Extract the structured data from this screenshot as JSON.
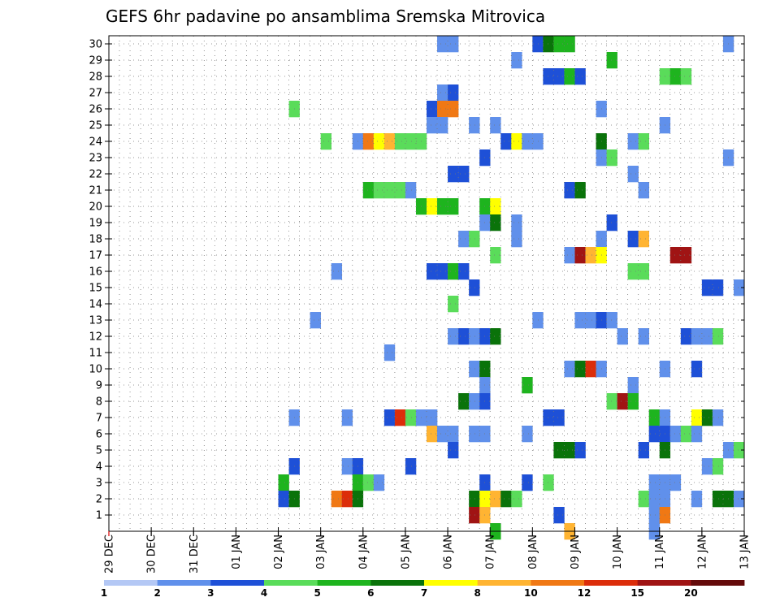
{
  "chart_data": {
    "type": "heatmap",
    "title": "GEFS 6hr padavine po ansamblima Sremska Mitrovica",
    "xlabel": "",
    "ylabel": "",
    "y_ticks": [
      "1",
      "2",
      "3",
      "4",
      "5",
      "6",
      "7",
      "8",
      "9",
      "10",
      "11",
      "12",
      "13",
      "14",
      "15",
      "16",
      "17",
      "18",
      "19",
      "20",
      "21",
      "22",
      "23",
      "24",
      "25",
      "26",
      "27",
      "28",
      "29",
      "30"
    ],
    "x_ticks": [
      "29 DEC",
      "30 DEC",
      "31 DEC",
      "01 JAN",
      "02 JAN",
      "03 JAN",
      "04 JAN",
      "05 JAN",
      "06 JAN",
      "07 JAN",
      "08 JAN",
      "09 JAN",
      "10 JAN",
      "11 JAN",
      "12 JAN",
      "13 JAN"
    ],
    "x_range_days": [
      0,
      15
    ],
    "y_range": [
      0,
      30
    ],
    "steps_per_day": 4,
    "colorbar": {
      "labels": [
        "1",
        "2",
        "3",
        "4",
        "5",
        "6",
        "7",
        "8",
        "10",
        "12",
        "15",
        "20"
      ],
      "colors": [
        "#b4c8f5",
        "#6090eb",
        "#1e50d7",
        "#5adc5a",
        "#1eb41e",
        "#0a730a",
        "#ffff00",
        "#ffb432",
        "#f07814",
        "#dc2d0a",
        "#a01414",
        "#640a0a"
      ]
    },
    "cells": [
      [
        30,
        31,
        1
      ],
      [
        30,
        32,
        1
      ],
      [
        30,
        40,
        2
      ],
      [
        30,
        41,
        5
      ],
      [
        30,
        42,
        4
      ],
      [
        30,
        43,
        4
      ],
      [
        30,
        58,
        1
      ],
      [
        29,
        38,
        1
      ],
      [
        29,
        47,
        4
      ],
      [
        28,
        41,
        2
      ],
      [
        28,
        42,
        2
      ],
      [
        28,
        43,
        4
      ],
      [
        28,
        44,
        2
      ],
      [
        28,
        52,
        3
      ],
      [
        28,
        53,
        4
      ],
      [
        28,
        54,
        3
      ],
      [
        27,
        31,
        1
      ],
      [
        27,
        32,
        2
      ],
      [
        26,
        17,
        3
      ],
      [
        26,
        30,
        2
      ],
      [
        26,
        31,
        8
      ],
      [
        26,
        32,
        8
      ],
      [
        26,
        46,
        1
      ],
      [
        25,
        30,
        1
      ],
      [
        25,
        31,
        1
      ],
      [
        25,
        34,
        1
      ],
      [
        25,
        36,
        1
      ],
      [
        25,
        52,
        1
      ],
      [
        24,
        20,
        3
      ],
      [
        24,
        23,
        1
      ],
      [
        24,
        24,
        8
      ],
      [
        24,
        25,
        6
      ],
      [
        24,
        26,
        7
      ],
      [
        24,
        27,
        3
      ],
      [
        24,
        28,
        3
      ],
      [
        24,
        29,
        3
      ],
      [
        24,
        37,
        2
      ],
      [
        24,
        38,
        6
      ],
      [
        24,
        39,
        1
      ],
      [
        24,
        40,
        1
      ],
      [
        24,
        46,
        5
      ],
      [
        24,
        49,
        1
      ],
      [
        24,
        50,
        3
      ],
      [
        23,
        35,
        2
      ],
      [
        23,
        46,
        1
      ],
      [
        23,
        47,
        3
      ],
      [
        23,
        58,
        1
      ],
      [
        22,
        32,
        2
      ],
      [
        22,
        33,
        2
      ],
      [
        22,
        49,
        1
      ],
      [
        21,
        24,
        4
      ],
      [
        21,
        25,
        3
      ],
      [
        21,
        26,
        3
      ],
      [
        21,
        27,
        3
      ],
      [
        21,
        28,
        1
      ],
      [
        21,
        43,
        2
      ],
      [
        21,
        44,
        5
      ],
      [
        21,
        50,
        1
      ],
      [
        20,
        29,
        4
      ],
      [
        20,
        30,
        6
      ],
      [
        20,
        31,
        4
      ],
      [
        20,
        32,
        4
      ],
      [
        20,
        35,
        4
      ],
      [
        20,
        36,
        6
      ],
      [
        19,
        35,
        1
      ],
      [
        19,
        36,
        5
      ],
      [
        19,
        38,
        1
      ],
      [
        19,
        47,
        2
      ],
      [
        18,
        33,
        1
      ],
      [
        18,
        34,
        3
      ],
      [
        18,
        38,
        1
      ],
      [
        18,
        46,
        1
      ],
      [
        18,
        49,
        2
      ],
      [
        18,
        50,
        7
      ],
      [
        17,
        36,
        3
      ],
      [
        17,
        43,
        1
      ],
      [
        17,
        44,
        10
      ],
      [
        17,
        45,
        7
      ],
      [
        17,
        46,
        6
      ],
      [
        17,
        53,
        10
      ],
      [
        17,
        54,
        10
      ],
      [
        16,
        21,
        1
      ],
      [
        16,
        30,
        2
      ],
      [
        16,
        31,
        2
      ],
      [
        16,
        32,
        4
      ],
      [
        16,
        33,
        2
      ],
      [
        16,
        49,
        3
      ],
      [
        16,
        50,
        3
      ],
      [
        15,
        34,
        2
      ],
      [
        15,
        56,
        2
      ],
      [
        15,
        57,
        2
      ],
      [
        15,
        59,
        1
      ],
      [
        14,
        32,
        3
      ],
      [
        13,
        19,
        1
      ],
      [
        13,
        40,
        1
      ],
      [
        13,
        44,
        1
      ],
      [
        13,
        45,
        1
      ],
      [
        13,
        46,
        2
      ],
      [
        13,
        47,
        1
      ],
      [
        12,
        32,
        1
      ],
      [
        12,
        33,
        2
      ],
      [
        12,
        34,
        1
      ],
      [
        12,
        35,
        2
      ],
      [
        12,
        36,
        5
      ],
      [
        12,
        48,
        1
      ],
      [
        12,
        50,
        1
      ],
      [
        12,
        54,
        2
      ],
      [
        12,
        55,
        1
      ],
      [
        12,
        56,
        1
      ],
      [
        12,
        57,
        3
      ],
      [
        11,
        26,
        1
      ],
      [
        10,
        34,
        1
      ],
      [
        10,
        35,
        5
      ],
      [
        10,
        43,
        1
      ],
      [
        10,
        44,
        5
      ],
      [
        10,
        45,
        9
      ],
      [
        10,
        46,
        1
      ],
      [
        10,
        52,
        1
      ],
      [
        10,
        55,
        2
      ],
      [
        9,
        35,
        1
      ],
      [
        9,
        39,
        4
      ],
      [
        9,
        49,
        1
      ],
      [
        8,
        33,
        5
      ],
      [
        8,
        34,
        1
      ],
      [
        8,
        35,
        2
      ],
      [
        8,
        47,
        3
      ],
      [
        8,
        48,
        10
      ],
      [
        8,
        49,
        4
      ],
      [
        7,
        17,
        1
      ],
      [
        7,
        22,
        1
      ],
      [
        7,
        26,
        2
      ],
      [
        7,
        27,
        9
      ],
      [
        7,
        28,
        3
      ],
      [
        7,
        29,
        1
      ],
      [
        7,
        30,
        1
      ],
      [
        7,
        41,
        2
      ],
      [
        7,
        42,
        2
      ],
      [
        7,
        51,
        4
      ],
      [
        7,
        52,
        1
      ],
      [
        7,
        55,
        6
      ],
      [
        7,
        56,
        5
      ],
      [
        7,
        57,
        1
      ],
      [
        6,
        30,
        7
      ],
      [
        6,
        31,
        1
      ],
      [
        6,
        32,
        1
      ],
      [
        6,
        34,
        1
      ],
      [
        6,
        35,
        1
      ],
      [
        6,
        39,
        1
      ],
      [
        6,
        51,
        2
      ],
      [
        6,
        52,
        2
      ],
      [
        6,
        53,
        1
      ],
      [
        6,
        54,
        3
      ],
      [
        6,
        55,
        1
      ],
      [
        5,
        32,
        2
      ],
      [
        5,
        42,
        5
      ],
      [
        5,
        43,
        5
      ],
      [
        5,
        44,
        2
      ],
      [
        5,
        50,
        2
      ],
      [
        5,
        52,
        5
      ],
      [
        5,
        58,
        1
      ],
      [
        5,
        59,
        3
      ],
      [
        4,
        17,
        2
      ],
      [
        4,
        22,
        1
      ],
      [
        4,
        23,
        2
      ],
      [
        4,
        28,
        2
      ],
      [
        4,
        56,
        1
      ],
      [
        4,
        57,
        3
      ],
      [
        3,
        16,
        4
      ],
      [
        3,
        23,
        4
      ],
      [
        3,
        24,
        3
      ],
      [
        3,
        25,
        1
      ],
      [
        3,
        35,
        2
      ],
      [
        3,
        39,
        2
      ],
      [
        3,
        41,
        3
      ],
      [
        3,
        51,
        1
      ],
      [
        3,
        52,
        1
      ],
      [
        3,
        53,
        1
      ],
      [
        2,
        16,
        2
      ],
      [
        2,
        17,
        5
      ],
      [
        2,
        21,
        8
      ],
      [
        2,
        22,
        9
      ],
      [
        2,
        23,
        5
      ],
      [
        2,
        34,
        5
      ],
      [
        2,
        35,
        6
      ],
      [
        2,
        36,
        7
      ],
      [
        2,
        37,
        5
      ],
      [
        2,
        38,
        3
      ],
      [
        2,
        50,
        3
      ],
      [
        2,
        51,
        1
      ],
      [
        2,
        52,
        1
      ],
      [
        2,
        55,
        1
      ],
      [
        2,
        57,
        5
      ],
      [
        2,
        58,
        5
      ],
      [
        2,
        59,
        1
      ],
      [
        1,
        34,
        10
      ],
      [
        1,
        35,
        7
      ],
      [
        1,
        42,
        2
      ],
      [
        1,
        51,
        1
      ],
      [
        1,
        52,
        8
      ],
      [
        0,
        36,
        4
      ],
      [
        0,
        43,
        7
      ],
      [
        0,
        51,
        1
      ]
    ]
  }
}
